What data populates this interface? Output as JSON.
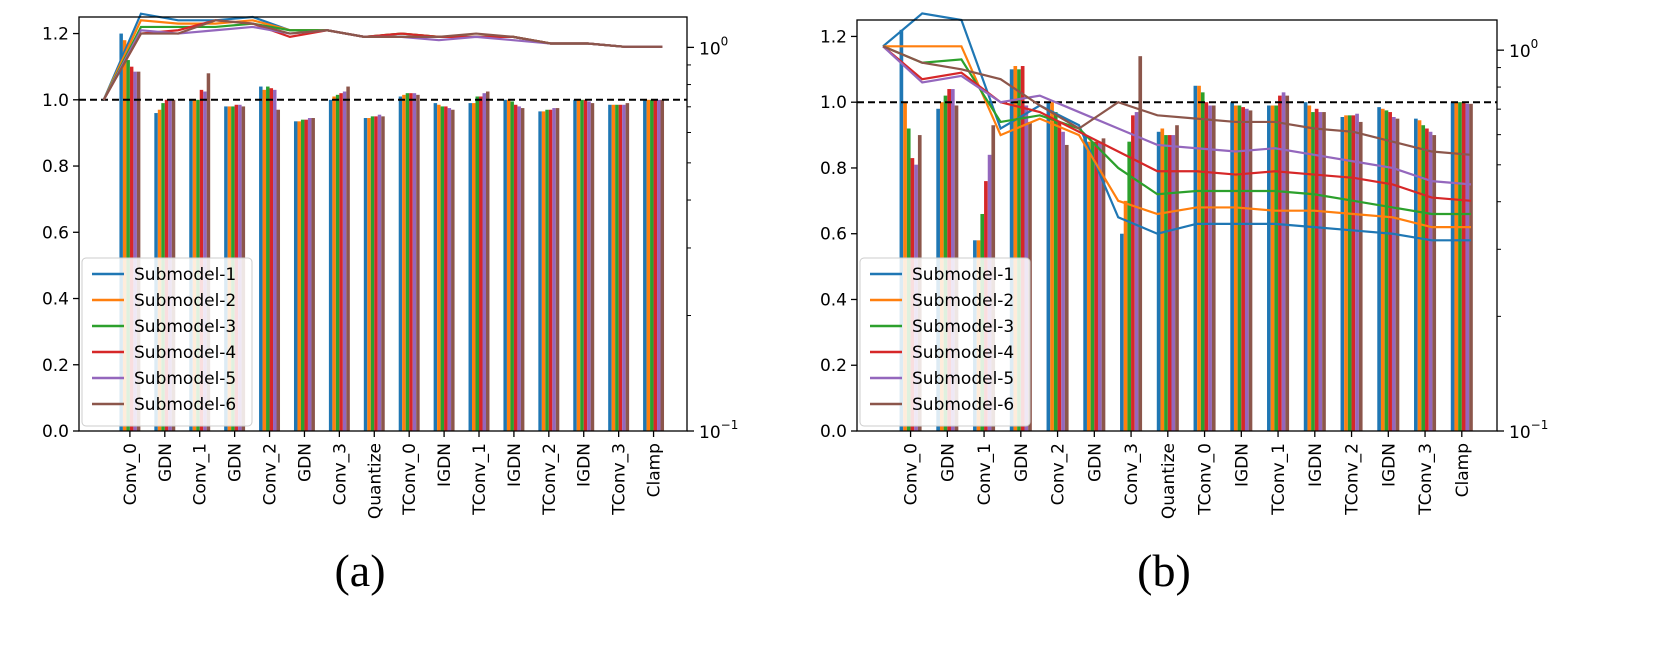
{
  "chart_data": [
    {
      "id": "a",
      "caption": "(a)",
      "type": "bar+line",
      "categories": [
        "Conv_0",
        "GDN",
        "Conv_1",
        "GDN",
        "Conv_2",
        "GDN",
        "Conv_3",
        "Quantize",
        "TConv_0",
        "IGDN",
        "TConv_1",
        "IGDN",
        "TConv_2",
        "IGDN",
        "TConv_3",
        "Clamp"
      ],
      "ylim": [
        0,
        1.25
      ],
      "yticks": [
        "0.0",
        "0.2",
        "0.4",
        "0.6",
        "0.8",
        "1.0",
        "1.2"
      ],
      "y2lim_log": [
        0.1,
        1.2
      ],
      "y2ticks": [
        {
          "exp": "0",
          "label": "10"
        },
        {
          "exp": "−1",
          "label": "10"
        }
      ],
      "reference_line": 1.0,
      "legend_position": "lower-left",
      "series": [
        {
          "name": "Submodel-1",
          "color": "#1f77b4",
          "bars": [
            1.2,
            0.96,
            1.0,
            0.98,
            1.04,
            0.935,
            1.0,
            0.945,
            1.01,
            0.99,
            0.99,
            1.0,
            0.965,
            1.0,
            0.985,
            1.0
          ],
          "line": [
            1.0,
            1.26,
            1.24,
            1.24,
            1.25,
            1.21,
            1.21,
            1.19,
            1.19,
            1.19,
            1.19,
            1.19,
            1.17,
            1.17,
            1.16,
            1.16
          ]
        },
        {
          "name": "Submodel-2",
          "color": "#ff7f0e",
          "bars": [
            1.18,
            0.97,
            1.0,
            0.98,
            1.03,
            0.935,
            1.01,
            0.945,
            1.015,
            0.985,
            0.99,
            1.0,
            0.965,
            1.0,
            0.985,
            1.0
          ],
          "line": [
            1.0,
            1.24,
            1.23,
            1.23,
            1.24,
            1.21,
            1.21,
            1.19,
            1.2,
            1.19,
            1.19,
            1.19,
            1.17,
            1.17,
            1.16,
            1.16
          ]
        },
        {
          "name": "Submodel-3",
          "color": "#2ca02c",
          "bars": [
            1.12,
            0.99,
            1.0,
            0.98,
            1.04,
            0.94,
            1.015,
            0.95,
            1.02,
            0.98,
            1.01,
            0.995,
            0.97,
            1.0,
            0.985,
            1.0
          ],
          "line": [
            1.0,
            1.22,
            1.22,
            1.22,
            1.23,
            1.21,
            1.21,
            1.19,
            1.2,
            1.19,
            1.19,
            1.19,
            1.17,
            1.17,
            1.16,
            1.16
          ]
        },
        {
          "name": "Submodel-4",
          "color": "#d62728",
          "bars": [
            1.1,
            1.0,
            1.03,
            0.985,
            1.035,
            0.94,
            1.02,
            0.95,
            1.02,
            0.98,
            1.01,
            0.985,
            0.97,
            1.0,
            0.985,
            1.0
          ],
          "line": [
            1.0,
            1.2,
            1.21,
            1.24,
            1.23,
            1.19,
            1.21,
            1.19,
            1.2,
            1.19,
            1.19,
            1.19,
            1.17,
            1.17,
            1.16,
            1.16
          ]
        },
        {
          "name": "Submodel-5",
          "color": "#9467bd",
          "bars": [
            1.085,
            1.0,
            1.025,
            0.985,
            1.03,
            0.945,
            1.025,
            0.955,
            1.02,
            0.975,
            1.02,
            0.98,
            0.975,
            0.995,
            0.985,
            1.0
          ],
          "line": [
            1.0,
            1.21,
            1.2,
            1.21,
            1.22,
            1.2,
            1.21,
            1.19,
            1.19,
            1.18,
            1.19,
            1.18,
            1.17,
            1.17,
            1.16,
            1.16
          ]
        },
        {
          "name": "Submodel-6",
          "color": "#8c564b",
          "bars": [
            1.085,
            1.0,
            1.08,
            0.98,
            0.97,
            0.945,
            1.04,
            0.95,
            1.015,
            0.97,
            1.025,
            0.975,
            0.975,
            0.99,
            0.99,
            1.0
          ],
          "line": [
            1.0,
            1.2,
            1.2,
            1.24,
            1.23,
            1.2,
            1.21,
            1.19,
            1.19,
            1.19,
            1.2,
            1.19,
            1.17,
            1.17,
            1.16,
            1.16
          ]
        }
      ]
    },
    {
      "id": "b",
      "caption": "(b)",
      "type": "bar+line",
      "categories": [
        "Conv_0",
        "GDN",
        "Conv_1",
        "GDN",
        "Conv_2",
        "GDN",
        "Conv_3",
        "Quantize",
        "TConv_0",
        "IGDN",
        "TConv_1",
        "IGDN",
        "TConv_2",
        "IGDN",
        "TConv_3",
        "Clamp"
      ],
      "ylim": [
        0,
        1.25
      ],
      "yticks": [
        "0.0",
        "0.2",
        "0.4",
        "0.6",
        "0.8",
        "1.0",
        "1.2"
      ],
      "y2lim_log": [
        0.1,
        1.2
      ],
      "y2ticks": [
        {
          "exp": "0",
          "label": "10"
        },
        {
          "exp": "−1",
          "label": "10"
        }
      ],
      "reference_line": 1.0,
      "legend_position": "lower-left",
      "series": [
        {
          "name": "Submodel-1",
          "color": "#1f77b4",
          "bars": [
            1.22,
            0.98,
            0.58,
            1.1,
            1.0,
            0.9,
            0.6,
            0.91,
            1.05,
            1.0,
            0.99,
            1.0,
            0.955,
            0.985,
            0.95,
            1.0
          ],
          "line": [
            1.17,
            1.27,
            1.25,
            0.92,
            0.99,
            0.93,
            0.65,
            0.6,
            0.63,
            0.63,
            0.63,
            0.62,
            0.61,
            0.6,
            0.58,
            0.58
          ]
        },
        {
          "name": "Submodel-2",
          "color": "#ff7f0e",
          "bars": [
            1.0,
            1.0,
            0.58,
            1.11,
            1.0,
            0.88,
            0.7,
            0.92,
            1.05,
            0.99,
            0.99,
            0.99,
            0.96,
            0.98,
            0.945,
            1.0
          ],
          "line": [
            1.17,
            1.17,
            1.17,
            0.9,
            0.95,
            0.9,
            0.7,
            0.66,
            0.68,
            0.68,
            0.67,
            0.67,
            0.66,
            0.65,
            0.62,
            0.62
          ]
        },
        {
          "name": "Submodel-3",
          "color": "#2ca02c",
          "bars": [
            0.92,
            1.02,
            0.66,
            1.1,
            0.97,
            0.88,
            0.88,
            0.9,
            1.03,
            0.99,
            0.99,
            0.97,
            0.96,
            0.975,
            0.93,
            1.0
          ],
          "line": [
            1.17,
            1.12,
            1.13,
            0.94,
            0.96,
            0.92,
            0.8,
            0.72,
            0.73,
            0.73,
            0.73,
            0.72,
            0.7,
            0.68,
            0.66,
            0.66
          ]
        },
        {
          "name": "Submodel-4",
          "color": "#d62728",
          "bars": [
            0.83,
            1.04,
            0.76,
            1.11,
            0.94,
            0.88,
            0.96,
            0.9,
            1.0,
            0.985,
            1.02,
            0.98,
            0.96,
            0.97,
            0.92,
            1.0
          ],
          "line": [
            1.17,
            1.07,
            1.09,
            1.0,
            0.97,
            0.91,
            0.85,
            0.79,
            0.79,
            0.78,
            0.79,
            0.78,
            0.77,
            0.75,
            0.71,
            0.7
          ]
        },
        {
          "name": "Submodel-5",
          "color": "#9467bd",
          "bars": [
            0.81,
            1.04,
            0.84,
            0.99,
            0.91,
            0.88,
            0.97,
            0.9,
            0.99,
            0.98,
            1.03,
            0.97,
            0.965,
            0.955,
            0.91,
            0.995
          ],
          "line": [
            1.17,
            1.06,
            1.08,
            1.0,
            1.02,
            0.97,
            0.92,
            0.87,
            0.86,
            0.85,
            0.86,
            0.84,
            0.82,
            0.8,
            0.76,
            0.75
          ]
        },
        {
          "name": "Submodel-6",
          "color": "#8c564b",
          "bars": [
            0.9,
            0.99,
            0.93,
            0.94,
            0.87,
            0.89,
            1.14,
            0.93,
            0.99,
            0.975,
            1.02,
            0.97,
            0.94,
            0.95,
            0.9,
            0.995
          ],
          "line": [
            1.17,
            1.12,
            1.1,
            1.07,
            0.99,
            0.92,
            1.0,
            0.96,
            0.95,
            0.94,
            0.94,
            0.92,
            0.91,
            0.88,
            0.85,
            0.84
          ]
        }
      ]
    }
  ]
}
